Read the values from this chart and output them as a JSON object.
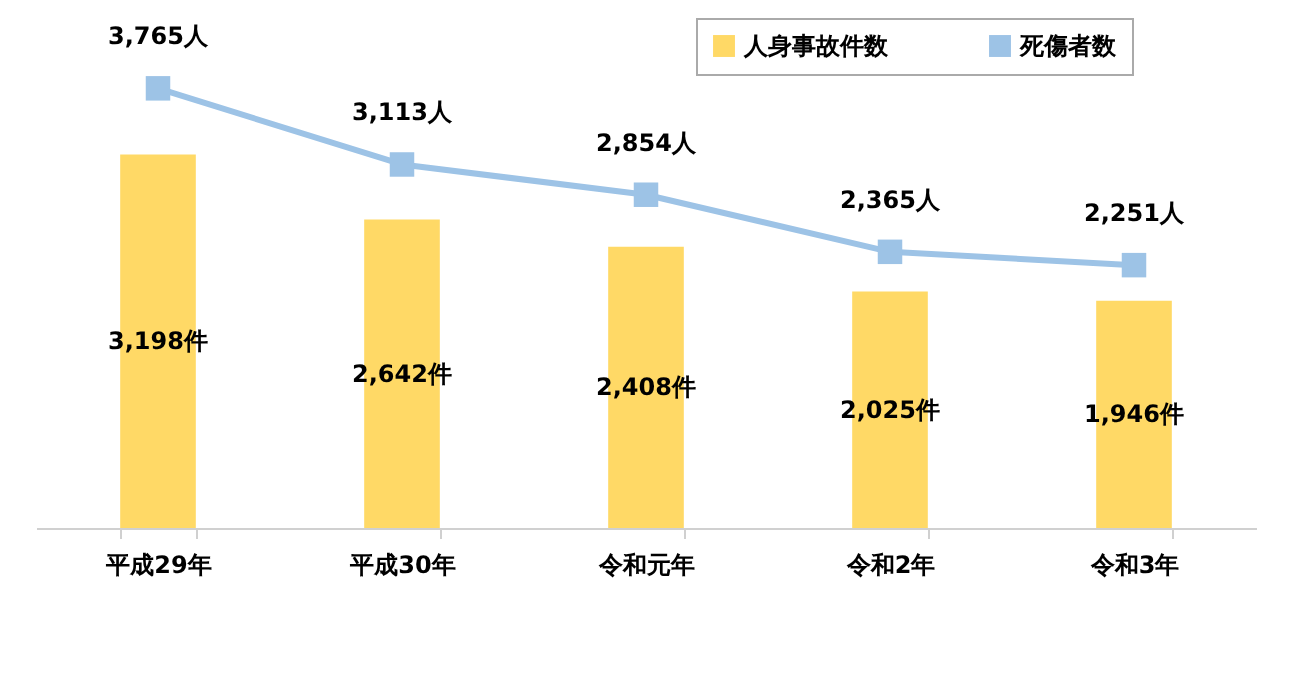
{
  "chart_data": {
    "type": "bar",
    "categories": [
      "平成29年",
      "平成30年",
      "令和元年",
      "令和2年",
      "令和3年"
    ],
    "series": [
      {
        "name": "人身事故件数",
        "color": "#ffd966",
        "values": [
          3198,
          2642,
          2408,
          2025,
          1946
        ],
        "value_labels": [
          "3,198件",
          "2,642件",
          "2,408件",
          "2,025件",
          "1,946件"
        ]
      },
      {
        "name": "死傷者数",
        "type": "line",
        "color": "#9dc3e6",
        "values": [
          3765,
          3113,
          2854,
          2365,
          2251
        ],
        "value_labels": [
          "3,765人",
          "3,113人",
          "2,854人",
          "2,365人",
          "2,251人"
        ]
      }
    ],
    "marker": "square",
    "legend": "top right",
    "grid": false
  }
}
